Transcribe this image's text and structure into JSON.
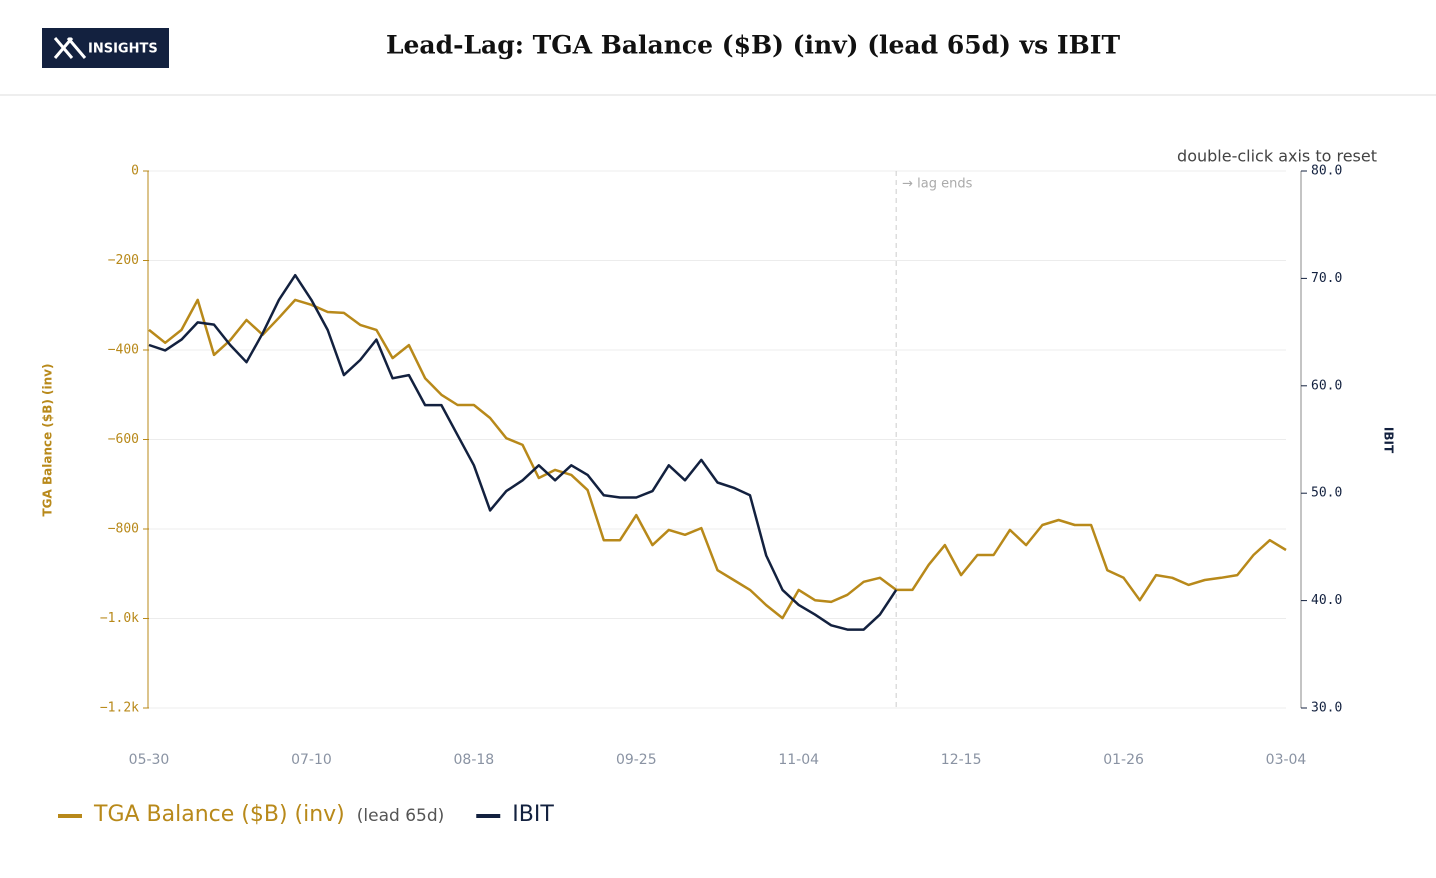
{
  "header": {
    "logo_text": "INSIGHTS",
    "title": "Lead-Lag: TGA Balance ($B) (inv) (lead 65d) vs IBIT"
  },
  "chart_data": {
    "type": "line",
    "hint": "double-click axis to reset",
    "annotation": "→ lag ends",
    "ylabel": "TGA Balance ($B) (inv)",
    "y2label": "IBIT",
    "categories": [
      "05-30",
      null,
      null,
      null,
      null,
      null,
      null,
      null,
      null,
      null,
      "07-10",
      null,
      null,
      null,
      null,
      null,
      null,
      null,
      null,
      null,
      "08-18",
      null,
      null,
      null,
      null,
      null,
      null,
      null,
      null,
      null,
      "09-25",
      null,
      null,
      null,
      null,
      null,
      null,
      null,
      null,
      null,
      "11-04",
      null,
      null,
      null,
      null,
      null,
      null,
      null,
      null,
      null,
      "12-15",
      null,
      null,
      null,
      null,
      null,
      null,
      null,
      null,
      null,
      "01-26",
      null,
      null,
      null,
      null,
      null,
      null,
      null,
      null,
      null,
      "03-04"
    ],
    "ylim": [
      -1200,
      0
    ],
    "yticks": [
      {
        "value": -1200,
        "label": "−1.2k"
      },
      {
        "value": -1000,
        "label": "−1.0k"
      },
      {
        "value": -800,
        "label": "−800"
      },
      {
        "value": -600,
        "label": "−600"
      },
      {
        "value": -400,
        "label": "−400"
      },
      {
        "value": -200,
        "label": "−200"
      },
      0
    ],
    "y2lim": [
      30,
      80
    ],
    "y2ticks": [
      {
        "value": 30,
        "label": "30.0"
      },
      {
        "value": 40,
        "label": "40.0"
      },
      {
        "value": 50,
        "label": "50.0"
      },
      {
        "value": 60,
        "label": "60.0"
      },
      {
        "value": 70,
        "label": "70.0"
      },
      {
        "value": 80,
        "label": "80.0"
      }
    ],
    "grid": true,
    "series": [
      {
        "name": "TGA Balance ($B) (inv)",
        "note": "(lead 65d)",
        "color": "#b8891a",
        "values": [
          -355,
          -384,
          -355,
          -288,
          -411,
          -378,
          -333,
          -366,
          -328,
          -288,
          -299,
          -315,
          -317,
          -344,
          -355,
          -418,
          -389,
          -463,
          -500,
          -523,
          -523,
          -552,
          -597,
          -612,
          -686,
          -668,
          -679,
          -713,
          -825,
          -825,
          -769,
          -836,
          -802,
          -813,
          -798,
          -892,
          -914,
          -936,
          -970,
          -999,
          -936,
          -959,
          -963,
          -947,
          -918,
          -909,
          -936,
          -936,
          -880,
          -836,
          -903,
          -858,
          -858,
          -802,
          -836,
          -791,
          -780,
          -791,
          -791,
          -892,
          -909,
          -959,
          -903,
          -909,
          -925,
          -914,
          -909,
          -903,
          -858,
          -825,
          -847
        ]
      },
      {
        "name": "IBIT",
        "color": "#13213f",
        "axis": "y2",
        "values": [
          63.8,
          63.3,
          64.3,
          65.9,
          65.7,
          63.8,
          62.2,
          64.9,
          68.0,
          70.3,
          68.0,
          65.2,
          61.0,
          62.4,
          64.3,
          60.7,
          61.0,
          58.2,
          58.2,
          55.4,
          52.6,
          48.4,
          50.2,
          51.2,
          52.6,
          51.2,
          52.6,
          51.7,
          49.8,
          49.6,
          49.6,
          50.2,
          52.6,
          51.2,
          53.1,
          51.0,
          50.5,
          49.8,
          44.2,
          41.0,
          39.6,
          38.7,
          37.7,
          37.3,
          37.3,
          38.7,
          41.0,
          null,
          null,
          null,
          null,
          null,
          null,
          null,
          null,
          null,
          null,
          null,
          null,
          null,
          null,
          null,
          null,
          null,
          null,
          null,
          null,
          null,
          null,
          null,
          null
        ]
      }
    ]
  }
}
